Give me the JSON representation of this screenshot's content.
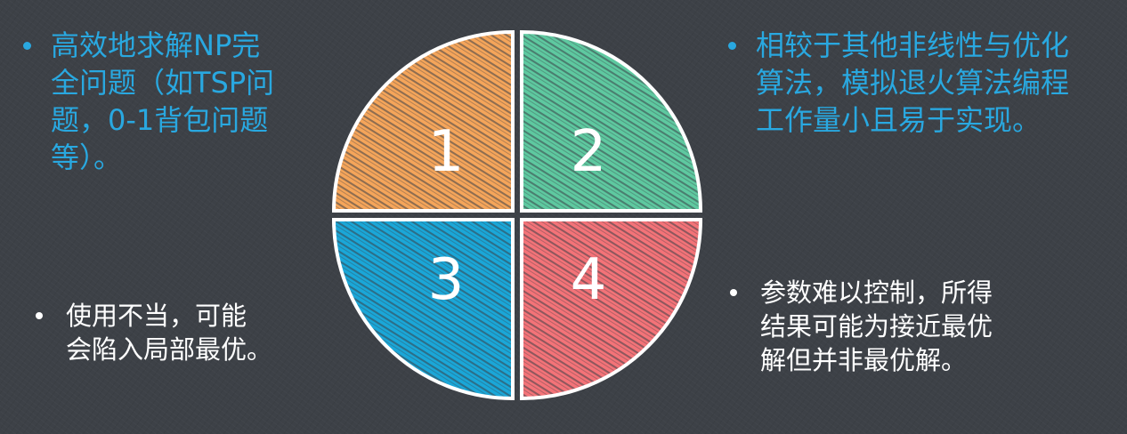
{
  "bullets": {
    "top_left": "高效地求解NP完\n全问题（如TSP问\n题，0-1背包问题\n等）。",
    "top_right": "相较于其他非线性与优化\n算法，模拟退火算法编程\n工作量小且易于实现。",
    "bottom_left": "使用不当，可能\n会陷入局部最优。",
    "bottom_right": "参数难以控制，所得\n结果可能为接近最优\n解但并非最优解。"
  },
  "quadrants": [
    {
      "label": "1",
      "color": "#f5a55a"
    },
    {
      "label": "2",
      "color": "#5ec9a0"
    },
    {
      "label": "3",
      "color": "#1aa7d8"
    },
    {
      "label": "4",
      "color": "#f47378"
    }
  ],
  "colors": {
    "background": "#3d4147",
    "highlight_text": "#29a8e0",
    "plain_text": "#ffffff",
    "hatch": "#3a3f47"
  }
}
